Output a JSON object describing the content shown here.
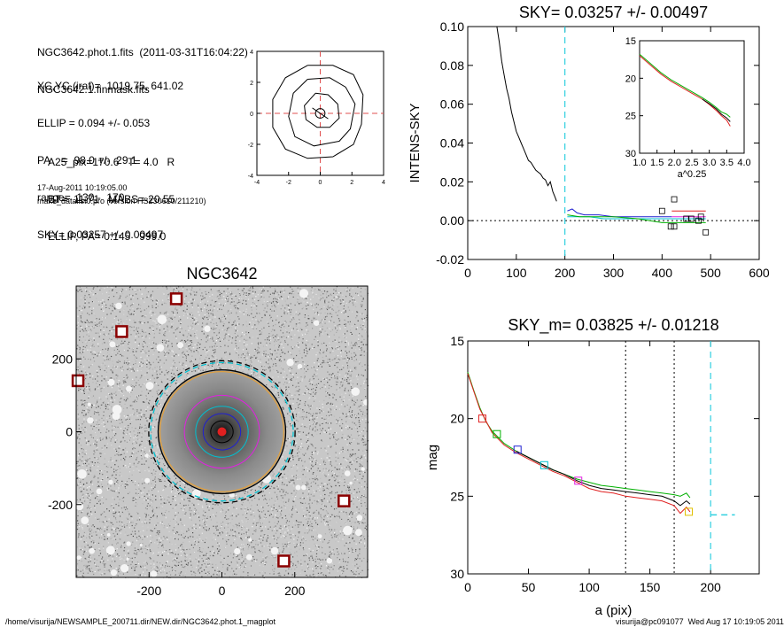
{
  "header": {
    "lines1": [
      "NGC3642.phot.1.fits  (2011-03-31T16:04:22)",
      "NGC3642.1.finmask.fits"
    ],
    "lines2": [
      "XC,YC (iraf)=  1019.75, 641.02",
      "ELLIP = 0.094 +/- 0.053",
      "PA    =  98.0 +/-  29.1",
      "range=  130.-  170.",
      "SKY= 0.03257 +/- 0.00497"
    ],
    "lines3": [
      "A25_pix=170.6   T= 4.0   R",
      "BT=  11.71   MABS=-20.55",
      "ELLIP, PA= 0.145   999.0"
    ],
    "date_line": "17-Aug-2011 10:19:05.00",
    "prog_line": "make_datalist0.pro (version HS230610/211210)"
  },
  "footer": {
    "left": "/home/visurija/NEWSAMPLE_200711.dir/NEW.dir/NGC3642.phot.1_magplot",
    "right": "visurija@pc091077  Wed Aug 17 10:19:05 2011"
  },
  "colors": {
    "black": "#000000",
    "red": "#e02020",
    "green": "#00b000",
    "cyan": "#00d0e0",
    "blue": "#2020d0",
    "magenta": "#e020e0",
    "orange": "#e0a040",
    "dash_red": "#e05050"
  },
  "chart_data": [
    {
      "id": "contour",
      "type": "line",
      "title": "",
      "xlim": [
        -4,
        4
      ],
      "ylim": [
        -4,
        4
      ],
      "xticks": [
        -4,
        -2,
        0,
        2,
        4
      ],
      "yticks": [
        -4,
        -2,
        0,
        2,
        4
      ],
      "contours": [
        [
          [
            -0.3,
            1.3
          ],
          [
            0.5,
            1.2
          ],
          [
            1.1,
            0.6
          ],
          [
            1.2,
            -0.3
          ],
          [
            0.6,
            -0.9
          ],
          [
            -0.2,
            -0.9
          ],
          [
            -0.9,
            -0.4
          ],
          [
            -1.0,
            0.5
          ],
          [
            -0.3,
            1.3
          ]
        ],
        [
          [
            -0.8,
            2.2
          ],
          [
            0.6,
            2.3
          ],
          [
            1.6,
            1.7
          ],
          [
            2.2,
            0.6
          ],
          [
            1.9,
            -1.0
          ],
          [
            1.2,
            -1.8
          ],
          [
            -0.4,
            -2.1
          ],
          [
            -1.6,
            -1.5
          ],
          [
            -2.0,
            -0.2
          ],
          [
            -1.7,
            1.3
          ],
          [
            -0.8,
            2.2
          ]
        ],
        [
          [
            -0.8,
            3.1
          ],
          [
            0.8,
            3.1
          ],
          [
            2.1,
            2.5
          ],
          [
            2.7,
            1.2
          ],
          [
            2.6,
            -0.7
          ],
          [
            2.1,
            -2.0
          ],
          [
            0.8,
            -2.8
          ],
          [
            -0.8,
            -2.9
          ],
          [
            -2.2,
            -2.3
          ],
          [
            -3.0,
            -0.9
          ],
          [
            -3.0,
            0.9
          ],
          [
            -2.2,
            2.3
          ],
          [
            -0.8,
            3.1
          ]
        ]
      ],
      "center_circle": [
        0,
        0,
        0.3
      ]
    },
    {
      "id": "intens",
      "type": "line",
      "title": "SKY= 0.03257 +/- 0.00497",
      "xlabel": "",
      "ylabel": "INTENS-SKY",
      "xlim": [
        0,
        600
      ],
      "ylim": [
        -0.02,
        0.1
      ],
      "xticks": [
        0,
        100,
        200,
        300,
        400,
        500,
        600
      ],
      "yticks": [
        -0.02,
        0.0,
        0.02,
        0.04,
        0.06,
        0.08,
        0.1
      ],
      "ytick_labels": [
        "-0.02",
        "0.00",
        "0.02",
        "0.04",
        "0.06",
        "0.08",
        "0.10"
      ],
      "vline_x": 200,
      "hline_y": 0.0,
      "series": [
        {
          "color": "#000000",
          "points": [
            [
              60,
              0.1
            ],
            [
              65,
              0.092
            ],
            [
              70,
              0.082
            ],
            [
              75,
              0.075
            ],
            [
              80,
              0.068
            ],
            [
              85,
              0.063
            ],
            [
              90,
              0.056
            ],
            [
              95,
              0.051
            ],
            [
              100,
              0.046
            ],
            [
              105,
              0.043
            ],
            [
              110,
              0.04
            ],
            [
              115,
              0.037
            ],
            [
              120,
              0.034
            ],
            [
              125,
              0.031
            ],
            [
              130,
              0.03
            ],
            [
              135,
              0.028
            ],
            [
              140,
              0.026
            ],
            [
              145,
              0.025
            ],
            [
              150,
              0.024
            ],
            [
              155,
              0.022
            ],
            [
              160,
              0.021
            ],
            [
              165,
              0.018
            ],
            [
              170,
              0.02
            ],
            [
              175,
              0.015
            ],
            [
              180,
              0.012
            ],
            [
              183,
              0.01
            ]
          ]
        },
        {
          "color": "#2020d0",
          "points": [
            [
              205,
              0.005
            ],
            [
              215,
              0.006
            ],
            [
              225,
              0.004
            ],
            [
              240,
              0.003
            ],
            [
              270,
              0.003
            ],
            [
              300,
              0.002
            ],
            [
              340,
              0.002
            ],
            [
              380,
              0.002
            ],
            [
              420,
              0.002
            ]
          ]
        },
        {
          "color": "#00c0d0",
          "points": [
            [
              205,
              0.002
            ],
            [
              230,
              0.002
            ],
            [
              250,
              0.002
            ],
            [
              280,
              0.001
            ],
            [
              320,
              0.001
            ],
            [
              360,
              0.001
            ],
            [
              400,
              0.001
            ],
            [
              440,
              0.001
            ],
            [
              490,
              0.001
            ]
          ]
        },
        {
          "color": "#00b000",
          "points": [
            [
              205,
              0.003
            ],
            [
              230,
              0.002
            ],
            [
              260,
              0.002
            ],
            [
              300,
              0.002
            ],
            [
              350,
              0.001
            ],
            [
              400,
              -0.001
            ],
            [
              440,
              -0.001
            ],
            [
              490,
              -0.001
            ]
          ]
        },
        {
          "color": "#e02020",
          "points": [
            [
              420,
              0.005
            ],
            [
              460,
              0.005
            ],
            [
              490,
              0.005
            ]
          ]
        },
        {
          "color": "#e020e0",
          "points": [
            [
              420,
              0.002
            ],
            [
              460,
              0.002
            ],
            [
              490,
              0.002
            ]
          ]
        }
      ],
      "markers": [
        [
          400,
          0.005
        ],
        [
          425,
          0.011
        ],
        [
          418,
          -0.003
        ],
        [
          425,
          -0.003
        ],
        [
          450,
          0.001
        ],
        [
          460,
          0.001
        ],
        [
          475,
          0.0
        ],
        [
          480,
          0.002
        ],
        [
          490,
          -0.006
        ]
      ],
      "inset": {
        "xlabel": "a^0.25",
        "xlim": [
          1.0,
          4.0
        ],
        "ylim": [
          15,
          30
        ],
        "xticks": [
          1.0,
          1.5,
          2.0,
          2.5,
          3.0,
          3.5,
          4.0
        ],
        "xtick_labels": [
          "1.0",
          "1.5",
          "2.0",
          "2.5",
          "3.0",
          "3.5",
          "4.0"
        ],
        "yticks": [
          15,
          20,
          25,
          30
        ],
        "series": [
          {
            "color": "#00b000",
            "points": [
              [
                1.0,
                16.8
              ],
              [
                1.3,
                18.0
              ],
              [
                1.6,
                19.2
              ],
              [
                1.9,
                20.2
              ],
              [
                2.2,
                21.0
              ],
              [
                2.5,
                21.8
              ],
              [
                2.8,
                22.6
              ],
              [
                3.0,
                23.2
              ],
              [
                3.2,
                23.9
              ],
              [
                3.35,
                24.5
              ],
              [
                3.5,
                24.8
              ],
              [
                3.6,
                25.2
              ]
            ]
          },
          {
            "color": "#e02020",
            "points": [
              [
                1.0,
                17.0
              ],
              [
                1.3,
                18.2
              ],
              [
                1.6,
                19.4
              ],
              [
                1.9,
                20.4
              ],
              [
                2.2,
                21.2
              ],
              [
                2.5,
                22.0
              ],
              [
                2.8,
                22.8
              ],
              [
                3.0,
                23.5
              ],
              [
                3.2,
                24.3
              ],
              [
                3.35,
                25.0
              ],
              [
                3.5,
                25.6
              ],
              [
                3.6,
                26.4
              ]
            ]
          },
          {
            "color": "#000000",
            "points": [
              [
                2.8,
                22.8
              ],
              [
                3.0,
                23.4
              ],
              [
                3.2,
                24.1
              ],
              [
                3.35,
                24.8
              ],
              [
                3.5,
                25.3
              ],
              [
                3.6,
                25.8
              ]
            ]
          }
        ]
      }
    },
    {
      "id": "image",
      "type": "scatter",
      "title": "NGC3642",
      "xlim": [
        -400,
        400
      ],
      "ylim": [
        -400,
        400
      ],
      "xticks": [
        -200,
        0,
        200
      ],
      "yticks": [
        -200,
        0,
        200
      ],
      "ellipses": [
        {
          "r": 30,
          "color": "#000000"
        },
        {
          "r": 50,
          "color": "#2020d0"
        },
        {
          "r": 70,
          "color": "#00c0d0"
        },
        {
          "r": 100,
          "color": "#e020e0"
        },
        {
          "r": 165,
          "color": "#e0a040"
        },
        {
          "r": 170,
          "color": "#000000"
        },
        {
          "r": 190,
          "color": "#00c0d0",
          "dash": true
        },
        {
          "r": 195,
          "color": "#000000",
          "dash": true
        }
      ],
      "boxes": [
        [
          -125,
          365
        ],
        [
          -275,
          275
        ],
        [
          -395,
          140
        ],
        [
          335,
          -190
        ],
        [
          170,
          -355
        ]
      ]
    },
    {
      "id": "mag",
      "type": "line",
      "title": "SKY_m=  0.03825 +/- 0.01218",
      "xlabel": "a (pix)",
      "ylabel": "mag",
      "xlim": [
        0,
        240
      ],
      "ylim": [
        30,
        15
      ],
      "xticks": [
        0,
        50,
        100,
        150,
        200
      ],
      "yticks": [
        15,
        20,
        25,
        30
      ],
      "vlines_dotted": [
        130,
        170
      ],
      "vline_cyan": 200,
      "sky_level": {
        "x": [
          200,
          220
        ],
        "y": 26.2
      },
      "series": [
        {
          "color": "#00b000",
          "points": [
            [
              0,
              17.0
            ],
            [
              5,
              18.2
            ],
            [
              10,
              19.3
            ],
            [
              15,
              20.2
            ],
            [
              20,
              20.8
            ],
            [
              25,
              21.2
            ],
            [
              30,
              21.6
            ],
            [
              40,
              22.1
            ],
            [
              50,
              22.5
            ],
            [
              60,
              22.9
            ],
            [
              70,
              23.3
            ],
            [
              80,
              23.6
            ],
            [
              90,
              23.9
            ],
            [
              100,
              24.1
            ],
            [
              110,
              24.3
            ],
            [
              120,
              24.4
            ],
            [
              130,
              24.5
            ],
            [
              140,
              24.6
            ],
            [
              150,
              24.7
            ],
            [
              160,
              24.8
            ],
            [
              170,
              24.9
            ],
            [
              175,
              25.0
            ],
            [
              180,
              24.8
            ],
            [
              183,
              25.1
            ]
          ]
        },
        {
          "color": "#e02020",
          "points": [
            [
              0,
              17.1
            ],
            [
              10,
              19.4
            ],
            [
              20,
              20.9
            ],
            [
              30,
              21.7
            ],
            [
              40,
              22.2
            ],
            [
              50,
              22.6
            ],
            [
              60,
              23.0
            ],
            [
              70,
              23.4
            ],
            [
              80,
              23.7
            ],
            [
              90,
              24.1
            ],
            [
              100,
              24.5
            ],
            [
              110,
              24.7
            ],
            [
              120,
              24.8
            ],
            [
              130,
              25.0
            ],
            [
              140,
              25.1
            ],
            [
              150,
              25.2
            ],
            [
              160,
              25.3
            ],
            [
              170,
              25.6
            ],
            [
              175,
              26.1
            ],
            [
              180,
              25.7
            ],
            [
              183,
              26.0
            ]
          ]
        },
        {
          "color": "#000000",
          "points": [
            [
              40,
              22.1
            ],
            [
              50,
              22.5
            ],
            [
              60,
              22.9
            ],
            [
              70,
              23.3
            ],
            [
              80,
              23.6
            ],
            [
              90,
              24.0
            ],
            [
              100,
              24.3
            ],
            [
              110,
              24.5
            ],
            [
              120,
              24.6
            ],
            [
              130,
              24.7
            ],
            [
              140,
              24.8
            ],
            [
              150,
              24.9
            ],
            [
              160,
              25.0
            ],
            [
              170,
              25.3
            ],
            [
              175,
              25.6
            ],
            [
              180,
              25.3
            ],
            [
              183,
              25.5
            ]
          ]
        }
      ],
      "markers": [
        {
          "x": 12,
          "y": 20.0,
          "color": "#e02020"
        },
        {
          "x": 24,
          "y": 21.0,
          "color": "#00b000"
        },
        {
          "x": 41,
          "y": 22.0,
          "color": "#2020d0"
        },
        {
          "x": 63,
          "y": 23.0,
          "color": "#00c0d0"
        },
        {
          "x": 91,
          "y": 24.0,
          "color": "#e020e0"
        },
        {
          "x": 182,
          "y": 26.0,
          "color": "#e0c000"
        }
      ]
    }
  ]
}
